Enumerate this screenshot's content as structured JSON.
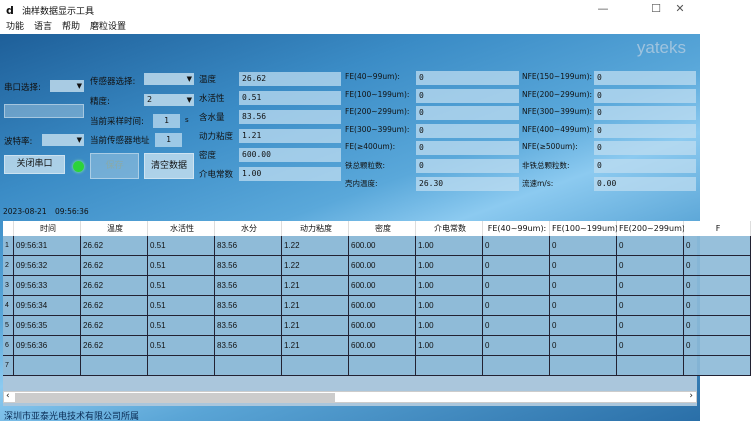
{
  "window": {
    "title": "油样数据显示工具",
    "icon": "app-icon",
    "controls": {
      "minimize": "—",
      "maximize": "☐",
      "close": "✕"
    }
  },
  "menu": [
    "功能",
    "语言",
    "帮助",
    "磨粒设置"
  ],
  "brand": "yateks",
  "left": {
    "port_label": "串口选择:",
    "port_value": "",
    "open_port_placeholder": "",
    "baud_label": "波特率:",
    "baud_value": "",
    "close_port": "关闭串口",
    "connection_status_color": "#2cd33a",
    "sensor_label": "传感器选择:",
    "sensor_value": "",
    "precision_label": "精度:",
    "precision_value": "2",
    "sample_label": "当前采样时间:",
    "sample_value": "1",
    "sample_unit": "s",
    "addr_label": "当前传感器地址",
    "addr_value": "1",
    "save": "保存",
    "clear": "清空数据"
  },
  "readings": [
    {
      "label": "温度",
      "value": "26.62"
    },
    {
      "label": "水活性",
      "value": "0.51"
    },
    {
      "label": "含水量",
      "value": "83.56"
    },
    {
      "label": "动力粘度",
      "value": "1.21"
    },
    {
      "label": "密度",
      "value": "600.00"
    },
    {
      "label": "介电常数",
      "value": "1.00"
    }
  ],
  "fe": [
    {
      "label": "FE(40~99um):",
      "value": "0"
    },
    {
      "label": "FE(100~199um):",
      "value": "0"
    },
    {
      "label": "FE(200~299um):",
      "value": "0"
    },
    {
      "label": "FE(300~399um):",
      "value": "0"
    },
    {
      "label": "FE(≥400um):",
      "value": "0"
    },
    {
      "label": "铁总颗粒数:",
      "value": "0"
    },
    {
      "label": "壳内温度:",
      "value": "26.30"
    }
  ],
  "nfe": [
    {
      "label": "NFE(150~199um):",
      "value": "0"
    },
    {
      "label": "NFE(200~299um):",
      "value": "0"
    },
    {
      "label": "NFE(300~399um):",
      "value": "0"
    },
    {
      "label": "NFE(400~499um):",
      "value": "0"
    },
    {
      "label": "NFE(≥500um):",
      "value": "0"
    },
    {
      "label": "非铁总颗粒数:",
      "value": "0"
    },
    {
      "label": "流速m/s:",
      "value": "0.00"
    }
  ],
  "datetime": {
    "date": "2023-08-21",
    "time": "09:56:36"
  },
  "table": {
    "columns": [
      "时间",
      "温度",
      "水活性",
      "水分",
      "动力粘度",
      "密度",
      "介电常数",
      "FE(40~99um):",
      "FE(100~199um)",
      "FE(200~299um)",
      "F"
    ],
    "rows": [
      [
        "09:56:31",
        "26.62",
        "0.51",
        "83.56",
        "1.22",
        "600.00",
        "1.00",
        "0",
        "0",
        "0",
        "0"
      ],
      [
        "09:56:32",
        "26.62",
        "0.51",
        "83.56",
        "1.22",
        "600.00",
        "1.00",
        "0",
        "0",
        "0",
        "0"
      ],
      [
        "09:56:33",
        "26.62",
        "0.51",
        "83.56",
        "1.21",
        "600.00",
        "1.00",
        "0",
        "0",
        "0",
        "0"
      ],
      [
        "09:56:34",
        "26.62",
        "0.51",
        "83.56",
        "1.21",
        "600.00",
        "1.00",
        "0",
        "0",
        "0",
        "0"
      ],
      [
        "09:56:35",
        "26.62",
        "0.51",
        "83.56",
        "1.21",
        "600.00",
        "1.00",
        "0",
        "0",
        "0",
        "0"
      ],
      [
        "09:56:36",
        "26.62",
        "0.51",
        "83.56",
        "1.21",
        "600.00",
        "1.00",
        "0",
        "0",
        "0",
        "0"
      ],
      [
        "",
        "",
        "",
        "",
        "",
        "",
        "",
        "",
        "",
        "",
        ""
      ]
    ],
    "row_numbers": [
      "1",
      "2",
      "3",
      "4",
      "5",
      "6",
      "7"
    ],
    "scroll_left": "‹",
    "scroll_right": "›"
  },
  "footer": "深圳市亚泰光电技术有限公司所属"
}
